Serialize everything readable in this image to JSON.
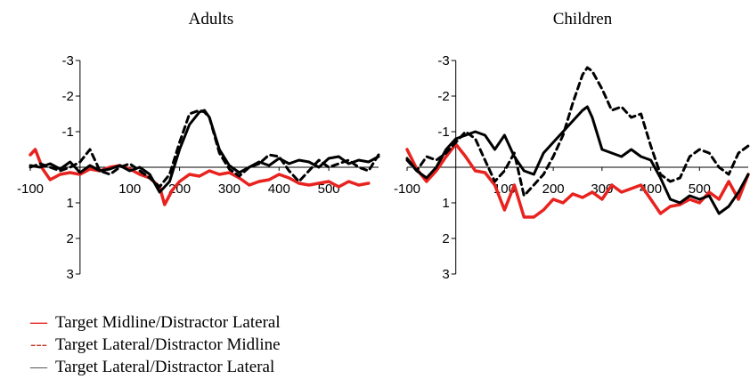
{
  "chart_data": [
    {
      "type": "line",
      "title": "Adults",
      "xlabel": "",
      "ylabel": "",
      "xlim": [
        -100,
        600
      ],
      "ylim": [
        3,
        -3
      ],
      "y_inverted": true,
      "x_ticks": [
        -100,
        100,
        200,
        300,
        400,
        500
      ],
      "y_ticks": [
        -3,
        -2,
        -1,
        1,
        2,
        3
      ],
      "grid": false,
      "series": [
        {
          "name": "Target Midline/Distractor Lateral",
          "color": "#e8231f",
          "style": "solid-thick",
          "x": [
            -100,
            -90,
            -75,
            -60,
            -40,
            -20,
            0,
            20,
            40,
            60,
            80,
            100,
            120,
            140,
            160,
            170,
            185,
            200,
            220,
            240,
            260,
            280,
            300,
            320,
            340,
            360,
            380,
            400,
            420,
            440,
            460,
            480,
            500,
            520,
            540,
            560,
            580
          ],
          "values": [
            -0.35,
            -0.5,
            0.05,
            0.35,
            0.2,
            0.15,
            0.2,
            0.05,
            0.1,
            0.0,
            -0.05,
            0.05,
            0.2,
            0.3,
            0.55,
            1.05,
            0.65,
            0.4,
            0.2,
            0.25,
            0.1,
            0.2,
            0.15,
            0.3,
            0.5,
            0.4,
            0.35,
            0.2,
            0.3,
            0.45,
            0.5,
            0.45,
            0.4,
            0.55,
            0.4,
            0.5,
            0.45
          ]
        },
        {
          "name": "Target Lateral/Distractor Midline",
          "color": "#000000",
          "style": "dashed",
          "x": [
            -100,
            -80,
            -60,
            -40,
            -20,
            0,
            20,
            40,
            60,
            80,
            100,
            120,
            140,
            160,
            180,
            200,
            210,
            220,
            240,
            250,
            260,
            280,
            300,
            320,
            340,
            360,
            380,
            400,
            420,
            440,
            460,
            480,
            500,
            520,
            540,
            560,
            580,
            600
          ],
          "values": [
            0.0,
            -0.1,
            0.0,
            0.1,
            0.0,
            -0.15,
            -0.5,
            0.1,
            0.2,
            0.0,
            -0.1,
            0.1,
            0.3,
            0.55,
            0.2,
            -0.7,
            -1.1,
            -1.5,
            -1.6,
            -1.55,
            -1.4,
            -0.4,
            0.05,
            0.25,
            0.0,
            -0.1,
            -0.35,
            -0.3,
            0.1,
            0.4,
            0.1,
            -0.2,
            0.0,
            -0.1,
            -0.2,
            0.0,
            0.1,
            -0.35
          ]
        },
        {
          "name": "Target Lateral/Distractor Lateral",
          "color": "#000000",
          "style": "solid",
          "x": [
            -100,
            -80,
            -60,
            -40,
            -20,
            0,
            20,
            40,
            60,
            80,
            100,
            120,
            140,
            160,
            180,
            200,
            220,
            240,
            250,
            260,
            280,
            300,
            320,
            340,
            360,
            380,
            400,
            420,
            440,
            460,
            480,
            500,
            520,
            540,
            560,
            580,
            600
          ],
          "values": [
            -0.05,
            0.0,
            -0.1,
            0.05,
            -0.15,
            0.15,
            -0.05,
            0.1,
            0.05,
            -0.05,
            0.1,
            0.0,
            0.2,
            0.7,
            0.4,
            -0.5,
            -1.2,
            -1.55,
            -1.6,
            -1.4,
            -0.5,
            -0.05,
            0.15,
            0.0,
            -0.15,
            -0.05,
            -0.25,
            -0.1,
            -0.2,
            -0.15,
            0.0,
            -0.25,
            -0.3,
            -0.1,
            -0.2,
            -0.15,
            -0.3
          ]
        }
      ]
    },
    {
      "type": "line",
      "title": "Children",
      "xlabel": "",
      "ylabel": "",
      "xlim": [
        -100,
        600
      ],
      "ylim": [
        3,
        -3
      ],
      "y_inverted": true,
      "x_ticks": [
        -100,
        100,
        200,
        300,
        400,
        500
      ],
      "y_ticks": [
        -3,
        -2,
        -1,
        1,
        2,
        3
      ],
      "grid": false,
      "series": [
        {
          "name": "Target Midline/Distractor Lateral",
          "color": "#e8231f",
          "style": "solid-thick",
          "x": [
            -100,
            -80,
            -60,
            -40,
            -20,
            0,
            20,
            40,
            60,
            80,
            100,
            120,
            140,
            160,
            180,
            200,
            220,
            240,
            260,
            280,
            300,
            320,
            340,
            360,
            380,
            400,
            420,
            440,
            460,
            480,
            500,
            520,
            540,
            560,
            580,
            600
          ],
          "values": [
            -0.5,
            0.05,
            0.4,
            0.1,
            -0.3,
            -0.65,
            -0.3,
            0.1,
            0.15,
            0.5,
            1.2,
            0.5,
            1.4,
            1.4,
            1.2,
            0.9,
            1.0,
            0.75,
            0.85,
            0.7,
            0.9,
            0.5,
            0.7,
            0.6,
            0.5,
            0.9,
            1.3,
            1.1,
            1.05,
            0.9,
            1.0,
            0.7,
            0.9,
            0.4,
            0.9,
            0.2
          ]
        },
        {
          "name": "Target Lateral/Distractor Midline",
          "color": "#000000",
          "style": "dashed",
          "x": [
            -100,
            -80,
            -60,
            -40,
            -20,
            0,
            20,
            40,
            60,
            80,
            100,
            120,
            140,
            160,
            180,
            200,
            220,
            240,
            260,
            270,
            280,
            300,
            320,
            340,
            360,
            380,
            400,
            420,
            440,
            460,
            480,
            500,
            520,
            540,
            560,
            580,
            600
          ],
          "values": [
            -0.2,
            0.1,
            -0.3,
            -0.2,
            -0.4,
            -0.7,
            -1.0,
            -0.8,
            -0.2,
            0.4,
            0.1,
            -0.4,
            0.8,
            0.5,
            0.2,
            -0.3,
            -0.9,
            -1.8,
            -2.6,
            -2.8,
            -2.7,
            -2.2,
            -1.6,
            -1.7,
            -1.4,
            -1.5,
            -0.6,
            0.2,
            0.4,
            0.3,
            -0.3,
            -0.5,
            -0.4,
            0.0,
            0.2,
            -0.4,
            -0.6
          ]
        },
        {
          "name": "Target Lateral/Distractor Lateral",
          "color": "#000000",
          "style": "solid",
          "x": [
            -100,
            -80,
            -60,
            -40,
            -20,
            0,
            20,
            40,
            60,
            80,
            100,
            120,
            140,
            160,
            180,
            200,
            220,
            240,
            260,
            270,
            280,
            300,
            320,
            340,
            360,
            380,
            400,
            420,
            440,
            460,
            480,
            500,
            520,
            540,
            560,
            580,
            600
          ],
          "values": [
            -0.25,
            0.1,
            0.3,
            0.0,
            -0.5,
            -0.8,
            -0.9,
            -1.0,
            -0.9,
            -0.5,
            -0.9,
            -0.3,
            0.1,
            0.2,
            -0.4,
            -0.7,
            -1.0,
            -1.3,
            -1.6,
            -1.7,
            -1.4,
            -0.5,
            -0.4,
            -0.3,
            -0.5,
            -0.3,
            -0.2,
            0.3,
            0.9,
            1.0,
            0.8,
            0.9,
            0.8,
            1.3,
            1.1,
            0.7,
            0.2
          ]
        }
      ]
    }
  ],
  "legend": {
    "items": [
      {
        "label": "Target Midline/Distractor Lateral",
        "swatch": "—",
        "color": "#e8231f"
      },
      {
        "label": "Target Lateral/Distractor Midline",
        "swatch": "---",
        "color": "#c0392b"
      },
      {
        "label": "Target Lateral/Distractor Lateral",
        "swatch": "—",
        "color": "#555555"
      }
    ]
  }
}
